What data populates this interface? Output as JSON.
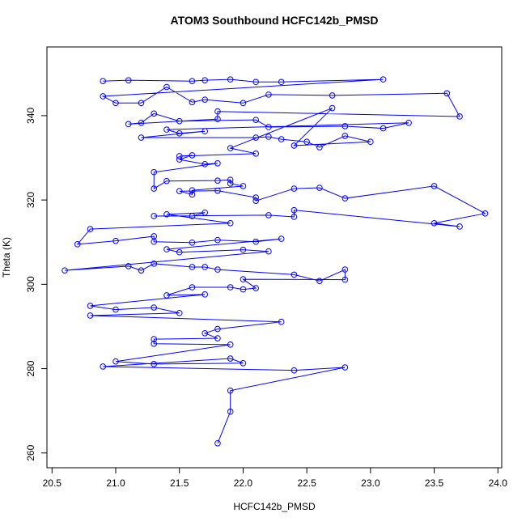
{
  "chart_data": {
    "type": "scatter-line",
    "title": "ATOM3 Southbound HCFC142b_PMSD",
    "x_label": "HCFC142b_PMSD",
    "y_label": "Theta (K)",
    "color": "#0000ff",
    "xlim": [
      20.46,
      24.03
    ],
    "ylim": [
      256.5,
      356.3
    ],
    "xticks": [
      20.5,
      {
        "value": 21,
        "label": "21.0"
      },
      21.5,
      {
        "value": 22,
        "label": "22.0"
      },
      22.5,
      {
        "value": 23,
        "label": "23.0"
      },
      23.5,
      {
        "value": 24,
        "label": "24.0"
      }
    ],
    "yticks": [
      260,
      280,
      300,
      320,
      340
    ],
    "series": [
      {
        "name": "HCFC142b_PMSD",
        "color": "#0000ff",
        "x": [
          20.9,
          21.1,
          21.6,
          21.7,
          21.9,
          22.1,
          22.3,
          23.1,
          20.9,
          21.0,
          21.2,
          21.4,
          21.6,
          21.7,
          22.0,
          22.2,
          22.7,
          23.6,
          23.7,
          21.8,
          21.8,
          21.1,
          21.2,
          21.3,
          21.5,
          22.1,
          22.2,
          22.8,
          23.1,
          23.3,
          21.4,
          21.5,
          21.7,
          21.2,
          22.1,
          22.2,
          22.3,
          22.5,
          22.6,
          22.8,
          23.0,
          22.4,
          22.7,
          21.9,
          22.1,
          21.5,
          21.6,
          21.5,
          21.7,
          21.8,
          21.3,
          21.3,
          21.4,
          21.8,
          21.9,
          21.9,
          22.0,
          21.6,
          21.6,
          21.5,
          21.8,
          22.1,
          22.1,
          22.4,
          22.6,
          22.8,
          23.5,
          23.9,
          23.5,
          23.7,
          22.4,
          22.4,
          22.2,
          21.3,
          21.6,
          21.7,
          21.4,
          21.9,
          20.8,
          20.7,
          21.0,
          21.3,
          21.3,
          21.6,
          21.8,
          22.1,
          22.3,
          21.4,
          21.5,
          22.0,
          22.2,
          20.6,
          21.1,
          21.2,
          21.3,
          21.6,
          21.7,
          21.8,
          22.4,
          22.6,
          22.8,
          22.8,
          22.0,
          22.1,
          22.0,
          21.9,
          21.6,
          21.4,
          21.7,
          20.8,
          21.0,
          21.3,
          21.5,
          20.8,
          22.3,
          21.8,
          21.7,
          21.8,
          21.3,
          21.3,
          21.9,
          21.0,
          21.3,
          22.0,
          21.9,
          20.9,
          22.4,
          22.8,
          21.9,
          21.9,
          21.8
        ],
        "values": [
          348.2,
          348.4,
          348.2,
          348.4,
          348.6,
          348.0,
          348.0,
          348.6,
          344.6,
          343.0,
          343.0,
          346.8,
          343.2,
          343.8,
          343.0,
          345.0,
          344.8,
          345.3,
          339.8,
          341.0,
          339.2,
          338.0,
          338.3,
          340.5,
          338.7,
          339.0,
          337.3,
          337.5,
          337.0,
          338.3,
          336.7,
          335.8,
          336.3,
          334.8,
          334.8,
          335.0,
          334.4,
          333.8,
          332.5,
          335.2,
          333.8,
          332.9,
          341.8,
          332.3,
          331.0,
          330.4,
          330.6,
          329.6,
          328.5,
          328.7,
          326.6,
          322.7,
          324.5,
          324.6,
          324.8,
          323.9,
          323.3,
          322.3,
          321.3,
          322.1,
          322.2,
          320.6,
          319.8,
          322.7,
          322.9,
          320.4,
          323.3,
          316.8,
          314.5,
          313.7,
          317.6,
          316.0,
          316.4,
          316.2,
          316.2,
          317.0,
          316.6,
          314.5,
          313.1,
          309.5,
          310.3,
          311.4,
          310.1,
          309.9,
          310.5,
          310.1,
          310.8,
          308.3,
          307.6,
          308.2,
          307.8,
          303.3,
          304.3,
          303.3,
          304.9,
          304.1,
          304.1,
          303.5,
          302.3,
          300.8,
          303.5,
          301.1,
          301.2,
          299.1,
          298.8,
          299.3,
          299.3,
          297.4,
          297.6,
          294.9,
          294.0,
          294.5,
          293.2,
          292.6,
          291.1,
          289.4,
          288.4,
          287.2,
          287.0,
          285.9,
          285.7,
          281.7,
          281.1,
          281.3,
          282.4,
          280.5,
          279.6,
          280.3,
          274.8,
          269.8,
          262.3
        ]
      }
    ]
  }
}
